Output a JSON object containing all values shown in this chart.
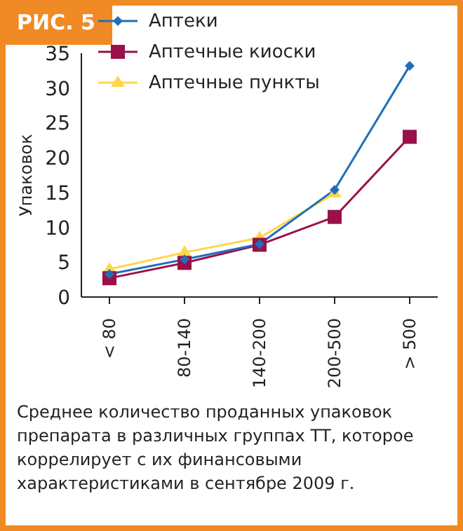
{
  "chart_data": {
    "type": "line",
    "title": "РИС. 5",
    "ylabel": "Упаковок",
    "categories": [
      "< 80",
      "80-140",
      "140-200",
      "200-500",
      "> 500"
    ],
    "series": [
      {
        "name": "Аптеки",
        "color": "#1f6fb8",
        "marker": "diamond",
        "values": [
          3.3,
          5.4,
          7.6,
          15.4,
          33.2
        ]
      },
      {
        "name": "Аптечные киоски",
        "color": "#9b1048",
        "marker": "square",
        "values": [
          2.7,
          4.9,
          7.5,
          11.5,
          23
        ]
      },
      {
        "name": "Аптечные пункты",
        "color": "#ffd54a",
        "marker": "triangle",
        "values": [
          4,
          6.4,
          8.5,
          14.9,
          null
        ]
      }
    ],
    "ylim": [
      0,
      35
    ],
    "yticks": [
      0,
      5,
      10,
      15,
      20,
      25,
      30,
      35
    ],
    "grid": false,
    "legend": "top left",
    "annotations": [
      "Среднее количество проданных упаковок препарата в различных группах ТТ, которое коррелирует с их финансовыми характеристиками в сентябре 2009 г."
    ]
  }
}
